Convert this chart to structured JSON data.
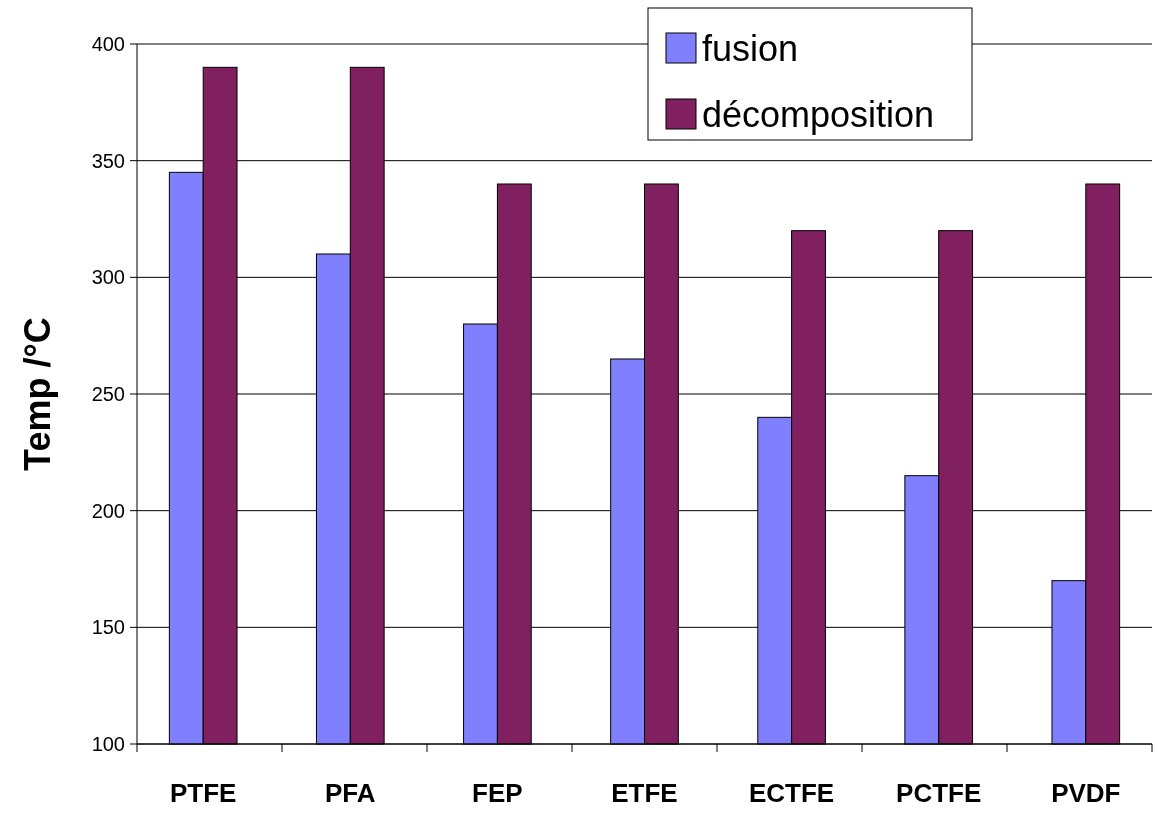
{
  "chart_data": {
    "type": "bar",
    "ylabel": "Temp /°C",
    "categories": [
      "PTFE",
      "PFA",
      "FEP",
      "ETFE",
      "ECTFE",
      "PCTFE",
      "PVDF"
    ],
    "series": [
      {
        "name": "fusion",
        "color": "#8080ff",
        "values": [
          345,
          310,
          280,
          265,
          240,
          215,
          170
        ]
      },
      {
        "name": "décomposition",
        "color": "#802060",
        "values": [
          390,
          390,
          340,
          340,
          320,
          320,
          340
        ]
      }
    ],
    "ylim": [
      100,
      400
    ],
    "yticks": [
      100,
      150,
      200,
      250,
      300,
      350,
      400
    ],
    "grid": "y",
    "legend": "top right"
  }
}
